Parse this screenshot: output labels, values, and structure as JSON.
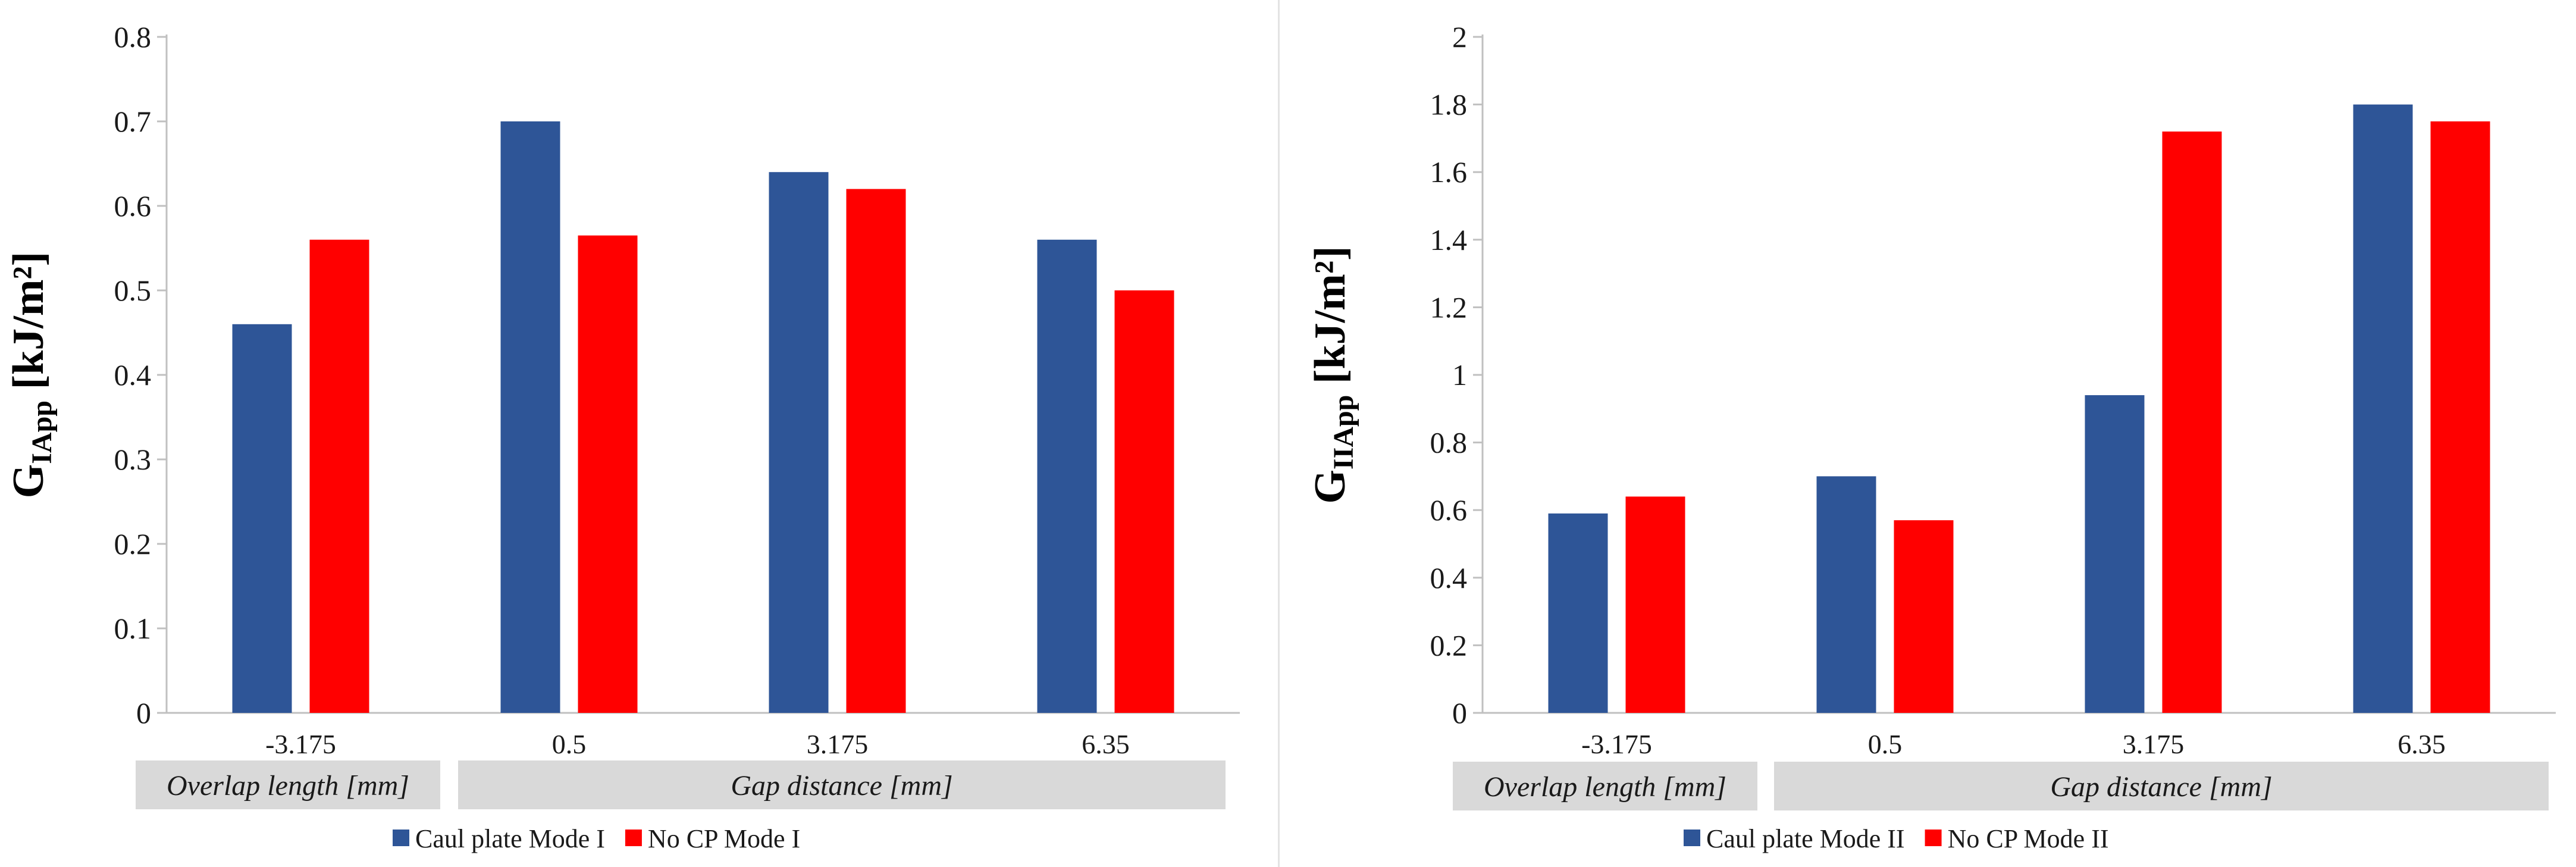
{
  "chart_data": [
    {
      "type": "bar",
      "categories": [
        "-3.175",
        "0.5",
        "3.175",
        "6.35"
      ],
      "series": [
        {
          "name": "Caul plate Mode I",
          "values": [
            0.46,
            0.7,
            0.64,
            0.56
          ]
        },
        {
          "name": "No CP Mode I",
          "values": [
            0.56,
            0.565,
            0.62,
            0.5
          ]
        }
      ],
      "ylabel": {
        "main": "G",
        "sub": "IApp",
        "unit": " [kJ/m²]"
      },
      "yticks": [
        "0",
        "0.1",
        "0.2",
        "0.3",
        "0.4",
        "0.5",
        "0.6",
        "0.7",
        "0.8"
      ],
      "ylim": [
        0,
        0.8
      ],
      "group_labels": [
        "Overlap length [mm]",
        "Gap distance [mm]"
      ],
      "legend_position": "bottom",
      "grid": false
    },
    {
      "type": "bar",
      "categories": [
        "-3.175",
        "0.5",
        "3.175",
        "6.35"
      ],
      "series": [
        {
          "name": "Caul plate Mode II",
          "values": [
            0.59,
            0.7,
            0.94,
            1.8
          ]
        },
        {
          "name": "No CP Mode II",
          "values": [
            0.64,
            0.57,
            1.72,
            1.75
          ]
        }
      ],
      "ylabel": {
        "main": "G",
        "sub": "IIApp",
        "unit": " [kJ/m²]"
      },
      "yticks": [
        "0",
        "0.2",
        "0.4",
        "0.6",
        "0.8",
        "1",
        "1.2",
        "1.4",
        "1.6",
        "1.8",
        "2"
      ],
      "ylim": [
        0,
        2
      ],
      "group_labels": [
        "Overlap length [mm]",
        "Gap distance [mm]"
      ],
      "legend_position": "bottom",
      "grid": false
    }
  ],
  "colors": {
    "series1": "#2e5597",
    "series2": "#ff0000",
    "axis": "#c0c0c0",
    "group_box": "#d9d9d9"
  }
}
